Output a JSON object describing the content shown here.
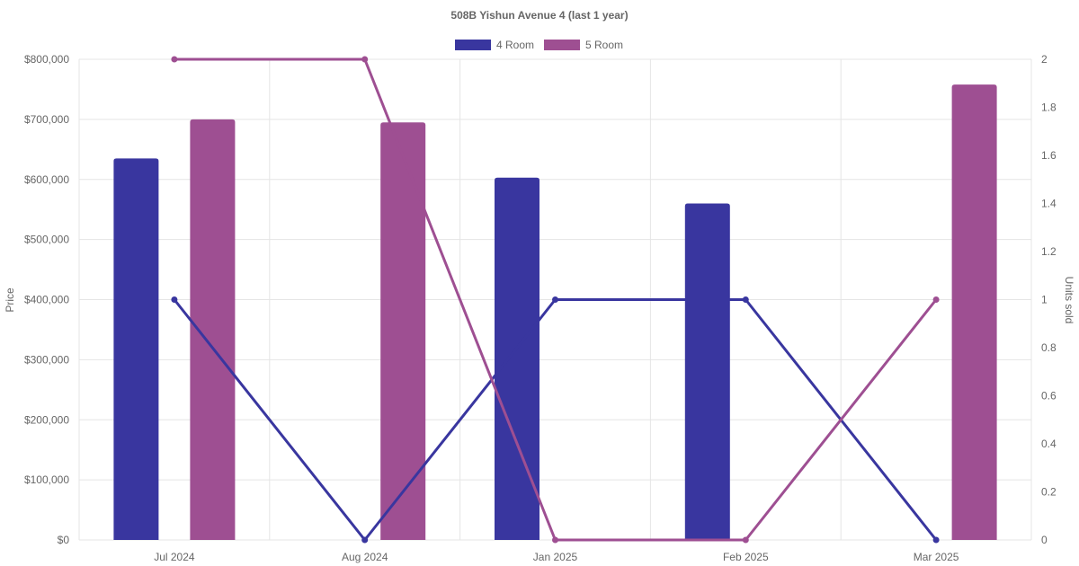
{
  "chart_data": {
    "type": "bar",
    "title": "508B Yishun Avenue 4 (last 1 year)",
    "categories": [
      "Jul 2024",
      "Aug 2024",
      "Jan 2025",
      "Feb 2025",
      "Mar 2025"
    ],
    "y_left": {
      "label": "Price",
      "range": [
        0,
        800000
      ],
      "ticks": [
        "$0",
        "$100,000",
        "$200,000",
        "$300,000",
        "$400,000",
        "$500,000",
        "$600,000",
        "$700,000",
        "$800,000"
      ]
    },
    "y_right": {
      "label": "Units sold",
      "range": [
        0,
        2
      ],
      "ticks": [
        "0",
        "0.2",
        "0.4",
        "0.6",
        "0.8",
        "1",
        "1.2",
        "1.4",
        "1.6",
        "1.8",
        "2"
      ]
    },
    "legend_position": "top-center",
    "grid": true,
    "legend": [
      {
        "name": "4 Room",
        "color": "#39369f"
      },
      {
        "name": "5 Room",
        "color": "#9e4f92"
      }
    ],
    "bar_series": [
      {
        "name": "4 Room",
        "color": "#39369f",
        "values": [
          635000,
          null,
          603000,
          560000,
          null
        ]
      },
      {
        "name": "5 Room",
        "color": "#9e4f92",
        "values": [
          700000,
          695000,
          null,
          null,
          758000
        ]
      }
    ],
    "line_series": [
      {
        "name": "4 Room",
        "color": "#39369f",
        "values": [
          1,
          0,
          1,
          1,
          0
        ]
      },
      {
        "name": "5 Room",
        "color": "#9e4f92",
        "values": [
          2,
          2,
          0,
          0,
          1
        ]
      }
    ]
  }
}
